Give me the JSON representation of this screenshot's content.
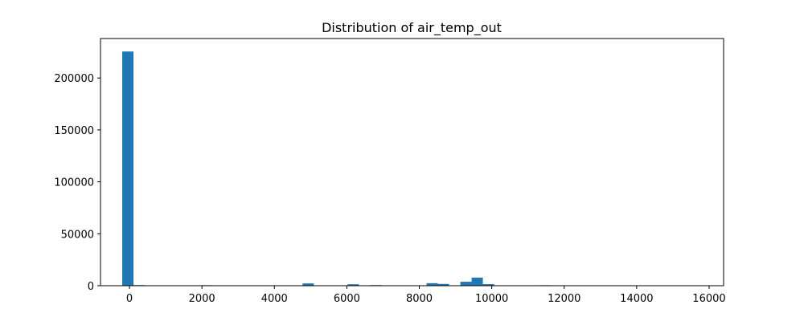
{
  "chart_data": {
    "type": "bar",
    "title": "Distribution of air_temp_out",
    "xlabel": "",
    "ylabel": "",
    "xlim": [
      -800,
      16400
    ],
    "ylim": [
      0,
      238000
    ],
    "xticks": [
      0,
      2000,
      4000,
      6000,
      8000,
      10000,
      12000,
      14000,
      16000
    ],
    "yticks": [
      0,
      50000,
      100000,
      150000,
      200000
    ],
    "bin_width": 311,
    "bins": [
      {
        "x0": -200,
        "value": 225500
      },
      {
        "x0": 111,
        "value": 600
      },
      {
        "x0": 1667,
        "value": 350
      },
      {
        "x0": 1978,
        "value": 500
      },
      {
        "x0": 2289,
        "value": 300
      },
      {
        "x0": 3533,
        "value": 300
      },
      {
        "x0": 3844,
        "value": 250
      },
      {
        "x0": 4467,
        "value": 300
      },
      {
        "x0": 4778,
        "value": 2200
      },
      {
        "x0": 5711,
        "value": 400
      },
      {
        "x0": 6022,
        "value": 1400
      },
      {
        "x0": 6644,
        "value": 600
      },
      {
        "x0": 8200,
        "value": 2400
      },
      {
        "x0": 8511,
        "value": 1700
      },
      {
        "x0": 9133,
        "value": 3800
      },
      {
        "x0": 9444,
        "value": 7800
      },
      {
        "x0": 9756,
        "value": 1500
      },
      {
        "x0": 10689,
        "value": 250
      },
      {
        "x0": 11000,
        "value": 400
      },
      {
        "x0": 11311,
        "value": 500
      }
    ],
    "bar_color": "#1f77b4",
    "grid": false,
    "legend": "none"
  }
}
